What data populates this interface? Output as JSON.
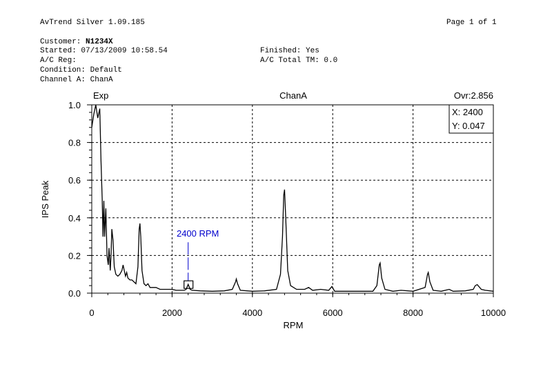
{
  "header": {
    "app_title": "AvTrend Silver 1.09.185",
    "page_label": "Page 1 of 1"
  },
  "info": {
    "customer_label": "Customer: ",
    "customer_value": "N1234X",
    "started": "Started: 07/13/2009 10:58.54",
    "ac_reg": "A/C Reg:",
    "condition": "Condition: Default",
    "channel": "Channel A: ChanA",
    "finished": "Finished: Yes",
    "ac_total_tm": "A/C Total TM: 0.0"
  },
  "chart_data": {
    "type": "line",
    "title": "ChanA",
    "top_left_label": "Exp",
    "overall_label": "Ovr:2.856",
    "xlabel": "RPM",
    "ylabel": "IPS Peak",
    "xlim": [
      0,
      10000
    ],
    "ylim": [
      0,
      1.0
    ],
    "xticks": [
      "0",
      "2000",
      "4000",
      "6000",
      "8000",
      "10000"
    ],
    "yticks": [
      "0.0",
      "0.2",
      "0.4",
      "0.6",
      "0.8",
      "1.0"
    ],
    "grid": true,
    "cursor_readout": {
      "x": "X: 2400",
      "y": "Y: 0.047"
    },
    "annotation": {
      "text": "2400 RPM",
      "x": 2400,
      "y": 0.047
    },
    "series": [
      {
        "points": [
          [
            0,
            0.88
          ],
          [
            50,
            0.95
          ],
          [
            100,
            1.0
          ],
          [
            150,
            0.93
          ],
          [
            200,
            0.98
          ],
          [
            230,
            0.7
          ],
          [
            260,
            0.5
          ],
          [
            280,
            0.3
          ],
          [
            300,
            0.49
          ],
          [
            320,
            0.3
          ],
          [
            350,
            0.45
          ],
          [
            380,
            0.2
          ],
          [
            410,
            0.15
          ],
          [
            430,
            0.24
          ],
          [
            460,
            0.12
          ],
          [
            480,
            0.2
          ],
          [
            500,
            0.34
          ],
          [
            530,
            0.28
          ],
          [
            560,
            0.14
          ],
          [
            600,
            0.1
          ],
          [
            650,
            0.09
          ],
          [
            700,
            0.1
          ],
          [
            750,
            0.12
          ],
          [
            780,
            0.15
          ],
          [
            810,
            0.12
          ],
          [
            840,
            0.09
          ],
          [
            870,
            0.11
          ],
          [
            900,
            0.08
          ],
          [
            950,
            0.07
          ],
          [
            1000,
            0.07
          ],
          [
            1050,
            0.06
          ],
          [
            1100,
            0.05
          ],
          [
            1150,
            0.14
          ],
          [
            1180,
            0.34
          ],
          [
            1200,
            0.37
          ],
          [
            1220,
            0.3
          ],
          [
            1250,
            0.12
          ],
          [
            1300,
            0.05
          ],
          [
            1350,
            0.04
          ],
          [
            1400,
            0.05
          ],
          [
            1450,
            0.03
          ],
          [
            1500,
            0.03
          ],
          [
            1600,
            0.03
          ],
          [
            1700,
            0.02
          ],
          [
            1800,
            0.02
          ],
          [
            1900,
            0.02
          ],
          [
            2000,
            0.02
          ],
          [
            2100,
            0.015
          ],
          [
            2200,
            0.015
          ],
          [
            2300,
            0.015
          ],
          [
            2350,
            0.02
          ],
          [
            2400,
            0.047
          ],
          [
            2450,
            0.02
          ],
          [
            2500,
            0.015
          ],
          [
            2700,
            0.012
          ],
          [
            3000,
            0.01
          ],
          [
            3300,
            0.012
          ],
          [
            3500,
            0.02
          ],
          [
            3580,
            0.06
          ],
          [
            3600,
            0.075
          ],
          [
            3630,
            0.05
          ],
          [
            3700,
            0.015
          ],
          [
            4000,
            0.01
          ],
          [
            4300,
            0.012
          ],
          [
            4600,
            0.02
          ],
          [
            4700,
            0.1
          ],
          [
            4750,
            0.3
          ],
          [
            4780,
            0.52
          ],
          [
            4800,
            0.55
          ],
          [
            4830,
            0.4
          ],
          [
            4880,
            0.12
          ],
          [
            4950,
            0.04
          ],
          [
            5100,
            0.02
          ],
          [
            5300,
            0.02
          ],
          [
            5400,
            0.03
          ],
          [
            5500,
            0.015
          ],
          [
            5700,
            0.02
          ],
          [
            5900,
            0.015
          ],
          [
            5980,
            0.035
          ],
          [
            6050,
            0.01
          ],
          [
            6500,
            0.01
          ],
          [
            7000,
            0.01
          ],
          [
            7100,
            0.04
          ],
          [
            7160,
            0.15
          ],
          [
            7180,
            0.16
          ],
          [
            7220,
            0.08
          ],
          [
            7300,
            0.02
          ],
          [
            7500,
            0.01
          ],
          [
            7700,
            0.015
          ],
          [
            8000,
            0.01
          ],
          [
            8300,
            0.03
          ],
          [
            8360,
            0.1
          ],
          [
            8380,
            0.11
          ],
          [
            8420,
            0.06
          ],
          [
            8500,
            0.015
          ],
          [
            8700,
            0.01
          ],
          [
            8900,
            0.02
          ],
          [
            9000,
            0.01
          ],
          [
            9300,
            0.012
          ],
          [
            9500,
            0.02
          ],
          [
            9550,
            0.04
          ],
          [
            9600,
            0.045
          ],
          [
            9700,
            0.02
          ],
          [
            9800,
            0.015
          ],
          [
            10000,
            0.01
          ]
        ]
      }
    ]
  }
}
